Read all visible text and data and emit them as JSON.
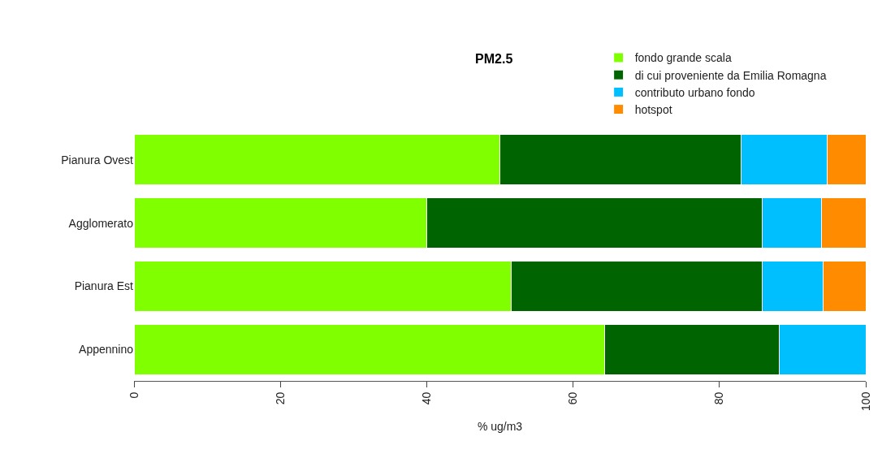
{
  "chart_data": {
    "type": "bar",
    "orientation": "horizontal",
    "stacked": true,
    "title": "PM2.5",
    "xlabel": "% ug/m3",
    "categories": [
      "Pianura Ovest",
      "Agglomerato",
      "Pianura Est",
      "Appennino"
    ],
    "series": [
      {
        "name": "fondo grande scala",
        "color": "#7fff00",
        "values": [
          50.0,
          40.0,
          51.5,
          64.3
        ]
      },
      {
        "name": "di cui proveniente da Emilia Romagna",
        "color": "#006400",
        "values": [
          33.0,
          45.9,
          34.4,
          23.9
        ]
      },
      {
        "name": "contributo urbano fondo",
        "color": "#00bfff",
        "values": [
          11.7,
          8.0,
          8.3,
          11.8
        ]
      },
      {
        "name": "hotspot",
        "color": "#ff8c00",
        "values": [
          5.3,
          6.1,
          5.8,
          null
        ]
      }
    ],
    "xlim": [
      0,
      100
    ],
    "xticks": [
      0,
      20,
      40,
      60,
      80,
      100
    ],
    "legend": "top right"
  }
}
